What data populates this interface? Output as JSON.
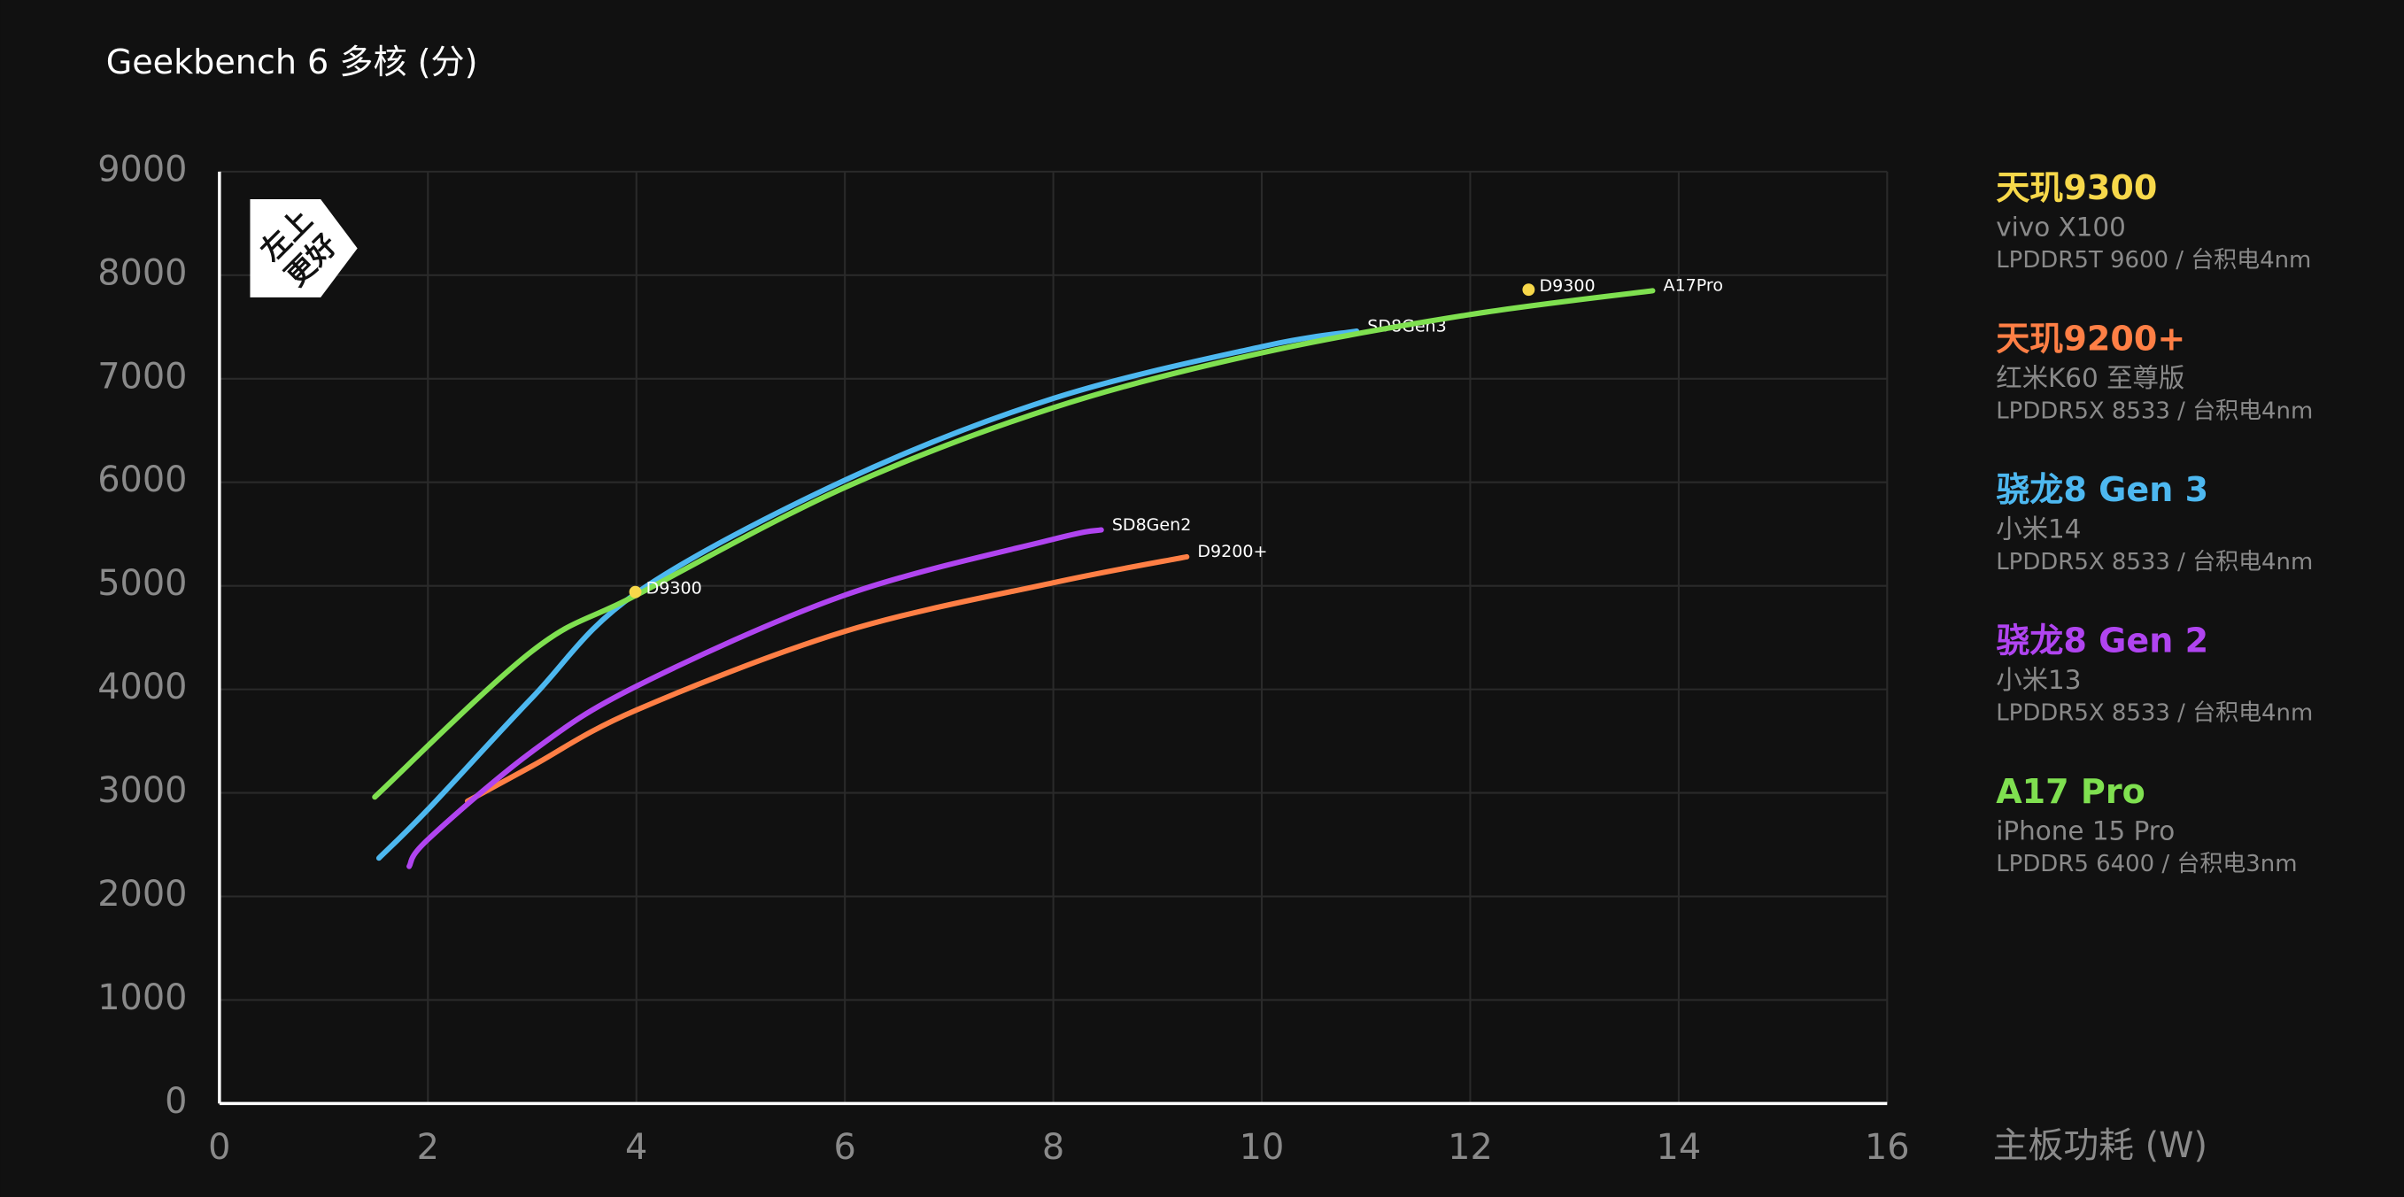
{
  "chart_data": {
    "type": "line",
    "y_label": "Geekbench 6 多核 (分)",
    "x_label": "主板功耗 (W)",
    "badge": [
      "左上",
      "更好"
    ],
    "xlim": [
      0,
      16
    ],
    "xticks": [
      0,
      2,
      4,
      6,
      8,
      10,
      12,
      14,
      16
    ],
    "ylim": [
      0,
      9000
    ],
    "yticks": [
      0,
      1000,
      2000,
      3000,
      4000,
      5000,
      6000,
      7000,
      8000,
      9000
    ],
    "grid": true,
    "series": [
      {
        "name": "天玑9300",
        "device": "vivo X100",
        "memory": "LPDDR5T 9600 / 台积电4nm",
        "color": "#f7d84a",
        "mode": "markers",
        "label": "D9300",
        "x": [
          3.99,
          12.56
        ],
        "values": [
          4940,
          7860
        ]
      },
      {
        "name": "天玑9200+",
        "device": "红米K60 至尊版",
        "memory": "LPDDR5X 8533 / 台积电4nm",
        "color": "#ff7f45",
        "mode": "line",
        "label": "D9200+",
        "x": [
          2.38,
          3,
          4,
          6,
          8,
          9.28
        ],
        "values": [
          2920,
          3260,
          3800,
          4560,
          5030,
          5280
        ]
      },
      {
        "name": "骁龙8 Gen 3",
        "device": "小米14",
        "memory": "LPDDR5X 8533 / 台积电4nm",
        "color": "#4db8f0",
        "mode": "line",
        "label": "SD8Gen3",
        "x": [
          1.53,
          2,
          3,
          4,
          6,
          8,
          10,
          10.91
        ],
        "values": [
          2370,
          2840,
          3920,
          4930,
          6020,
          6810,
          7310,
          7460
        ]
      },
      {
        "name": "骁龙8 Gen 2",
        "device": "小米13",
        "memory": "LPDDR5X 8533 / 台积电4nm",
        "color": "#b044f0",
        "mode": "line",
        "label": "SD8Gen2",
        "x": [
          1.82,
          2,
          3,
          4,
          6,
          8,
          8.46
        ],
        "values": [
          2290,
          2550,
          3400,
          4030,
          4910,
          5450,
          5540
        ]
      },
      {
        "name": "A17 Pro",
        "device": "iPhone 15 Pro",
        "memory": "LPDDR5 6400 / 台积电3nm",
        "color": "#7fe050",
        "mode": "line",
        "label": "A17Pro",
        "x": [
          1.49,
          3,
          4,
          6,
          8,
          10,
          12,
          13.75
        ],
        "values": [
          2960,
          4370,
          4910,
          5950,
          6720,
          7250,
          7620,
          7850
        ]
      }
    ]
  }
}
